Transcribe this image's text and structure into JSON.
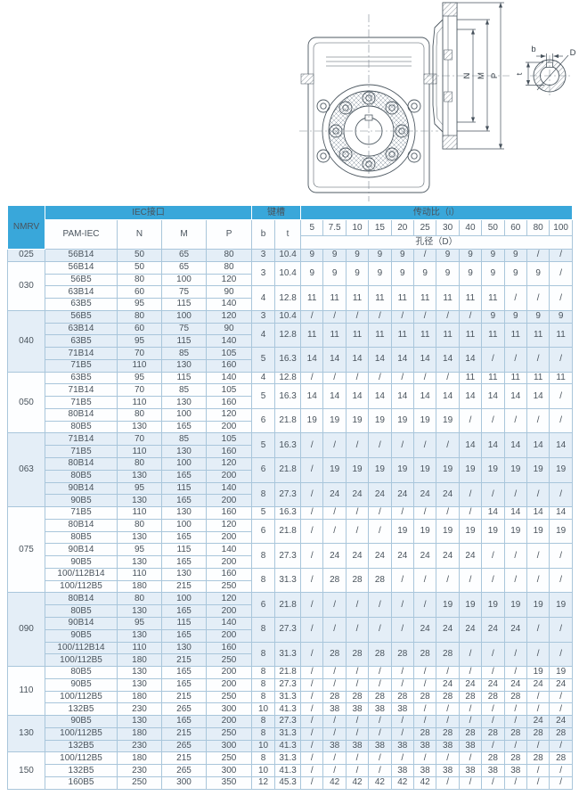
{
  "drawing": {
    "labels": {
      "dim_n": "N",
      "dim_m": "M",
      "dim_p": "P",
      "key_width": "b",
      "bore_dia": "D",
      "key_depth": "t"
    }
  },
  "table": {
    "colors": {
      "header_bg": "#39a7da",
      "header_text": "#ffffff",
      "row_tint": "#e4eef7",
      "row_plain": "#fdfeff",
      "border": "#a9c6db"
    },
    "header": {
      "nmrv": "NMRV",
      "iec_group": "IEC接口",
      "pam": "PAM-IEC",
      "n": "N",
      "m": "M",
      "p": "P",
      "key_group": "键槽",
      "b": "b",
      "t": "t",
      "ratio_group": "传动比（i）",
      "ratios": [
        "5",
        "7.5",
        "10",
        "15",
        "20",
        "25",
        "30",
        "40",
        "50",
        "60",
        "80",
        "100"
      ],
      "bore": "孔径（D）"
    },
    "groups": [
      {
        "nmrv": "025",
        "tint": true,
        "blocks": [
          {
            "b": "3",
            "t": "10.4",
            "rows": [
              {
                "pam": "56B14",
                "n": "50",
                "m": "65",
                "p": "80"
              }
            ],
            "d": [
              "9",
              "9",
              "9",
              "9",
              "9",
              "/",
              "9",
              "9",
              "9",
              "9",
              "/",
              "/"
            ]
          }
        ]
      },
      {
        "nmrv": "030",
        "tint": false,
        "blocks": [
          {
            "b": "3",
            "t": "10.4",
            "rows": [
              {
                "pam": "56B14",
                "n": "50",
                "m": "65",
                "p": "80"
              },
              {
                "pam": "56B5",
                "n": "80",
                "m": "100",
                "p": "120"
              }
            ],
            "d": [
              "9",
              "9",
              "9",
              "9",
              "9",
              "9",
              "9",
              "9",
              "9",
              "9",
              "9",
              "/"
            ]
          },
          {
            "b": "4",
            "t": "12.8",
            "rows": [
              {
                "pam": "63B14",
                "n": "60",
                "m": "75",
                "p": "90"
              },
              {
                "pam": "63B5",
                "n": "95",
                "m": "115",
                "p": "140"
              }
            ],
            "d": [
              "11",
              "11",
              "11",
              "11",
              "11",
              "11",
              "11",
              "11",
              "11",
              "/",
              "/",
              "/"
            ]
          }
        ]
      },
      {
        "nmrv": "040",
        "tint": true,
        "blocks": [
          {
            "b": "3",
            "t": "10.4",
            "rows": [
              {
                "pam": "56B5",
                "n": "80",
                "m": "100",
                "p": "120"
              }
            ],
            "d": [
              "/",
              "/",
              "/",
              "/",
              "/",
              "/",
              "/",
              "/",
              "9",
              "9",
              "9",
              "9"
            ]
          },
          {
            "b": "4",
            "t": "12.8",
            "rows": [
              {
                "pam": "63B14",
                "n": "60",
                "m": "75",
                "p": "90"
              },
              {
                "pam": "63B5",
                "n": "95",
                "m": "115",
                "p": "140"
              }
            ],
            "d": [
              "11",
              "11",
              "11",
              "11",
              "11",
              "11",
              "11",
              "11",
              "11",
              "11",
              "11",
              "11"
            ]
          },
          {
            "b": "5",
            "t": "16.3",
            "rows": [
              {
                "pam": "71B14",
                "n": "70",
                "m": "85",
                "p": "105"
              },
              {
                "pam": "71B5",
                "n": "110",
                "m": "130",
                "p": "160"
              }
            ],
            "d": [
              "14",
              "14",
              "14",
              "14",
              "14",
              "14",
              "14",
              "14",
              "/",
              "/",
              "/",
              "/"
            ]
          }
        ]
      },
      {
        "nmrv": "050",
        "tint": false,
        "blocks": [
          {
            "b": "4",
            "t": "12.8",
            "rows": [
              {
                "pam": "63B5",
                "n": "95",
                "m": "115",
                "p": "140"
              }
            ],
            "d": [
              "/",
              "/",
              "/",
              "/",
              "/",
              "/",
              "/",
              "11",
              "11",
              "11",
              "11",
              "11"
            ]
          },
          {
            "b": "5",
            "t": "16.3",
            "rows": [
              {
                "pam": "71B14",
                "n": "70",
                "m": "85",
                "p": "105"
              },
              {
                "pam": "71B5",
                "n": "110",
                "m": "130",
                "p": "160"
              }
            ],
            "d": [
              "14",
              "14",
              "14",
              "14",
              "14",
              "14",
              "14",
              "14",
              "14",
              "14",
              "14",
              "/"
            ]
          },
          {
            "b": "6",
            "t": "21.8",
            "rows": [
              {
                "pam": "80B14",
                "n": "80",
                "m": "100",
                "p": "120"
              },
              {
                "pam": "80B5",
                "n": "130",
                "m": "165",
                "p": "200"
              }
            ],
            "d": [
              "19",
              "19",
              "19",
              "19",
              "19",
              "19",
              "19",
              "/",
              "/",
              "/",
              "/",
              "/"
            ]
          }
        ]
      },
      {
        "nmrv": "063",
        "tint": true,
        "blocks": [
          {
            "b": "5",
            "t": "16.3",
            "rows": [
              {
                "pam": "71B14",
                "n": "70",
                "m": "85",
                "p": "105"
              },
              {
                "pam": "71B5",
                "n": "110",
                "m": "130",
                "p": "160"
              }
            ],
            "d": [
              "/",
              "/",
              "/",
              "/",
              "/",
              "/",
              "/",
              "14",
              "14",
              "14",
              "14",
              "14"
            ]
          },
          {
            "b": "6",
            "t": "21.8",
            "rows": [
              {
                "pam": "80B14",
                "n": "80",
                "m": "100",
                "p": "120"
              },
              {
                "pam": "80B5",
                "n": "130",
                "m": "165",
                "p": "200"
              }
            ],
            "d": [
              "/",
              "19",
              "19",
              "19",
              "19",
              "19",
              "19",
              "19",
              "19",
              "19",
              "19",
              "19"
            ]
          },
          {
            "b": "8",
            "t": "27.3",
            "rows": [
              {
                "pam": "90B14",
                "n": "95",
                "m": "115",
                "p": "140"
              },
              {
                "pam": "90B5",
                "n": "130",
                "m": "165",
                "p": "200"
              }
            ],
            "d": [
              "/",
              "24",
              "24",
              "24",
              "24",
              "24",
              "24",
              "/",
              "/",
              "/",
              "/",
              "/"
            ]
          }
        ]
      },
      {
        "nmrv": "075",
        "tint": false,
        "blocks": [
          {
            "b": "5",
            "t": "16.3",
            "rows": [
              {
                "pam": "71B5",
                "n": "110",
                "m": "130",
                "p": "160"
              }
            ],
            "d": [
              "/",
              "/",
              "/",
              "/",
              "/",
              "/",
              "/",
              "/",
              "14",
              "14",
              "14",
              "14"
            ]
          },
          {
            "b": "6",
            "t": "21.8",
            "rows": [
              {
                "pam": "80B14",
                "n": "80",
                "m": "100",
                "p": "120"
              },
              {
                "pam": "80B5",
                "n": "130",
                "m": "165",
                "p": "200"
              }
            ],
            "d": [
              "/",
              "/",
              "/",
              "/",
              "19",
              "19",
              "19",
              "19",
              "19",
              "19",
              "19",
              "19"
            ]
          },
          {
            "b": "8",
            "t": "27.3",
            "rows": [
              {
                "pam": "90B14",
                "n": "95",
                "m": "115",
                "p": "140"
              },
              {
                "pam": "90B5",
                "n": "130",
                "m": "165",
                "p": "200"
              }
            ],
            "d": [
              "/",
              "24",
              "24",
              "24",
              "24",
              "24",
              "24",
              "24",
              "/",
              "/",
              "/",
              "/"
            ]
          },
          {
            "b": "8",
            "t": "31.3",
            "rows": [
              {
                "pam": "100/112B14",
                "n": "110",
                "m": "130",
                "p": "160"
              },
              {
                "pam": "100/112B5",
                "n": "180",
                "m": "215",
                "p": "250"
              }
            ],
            "d": [
              "/",
              "28",
              "28",
              "28",
              "/",
              "/",
              "/",
              "/",
              "/",
              "/",
              "/",
              "/"
            ]
          }
        ]
      },
      {
        "nmrv": "090",
        "tint": true,
        "blocks": [
          {
            "b": "6",
            "t": "21.8",
            "rows": [
              {
                "pam": "80B14",
                "n": "80",
                "m": "100",
                "p": "120"
              },
              {
                "pam": "80B5",
                "n": "130",
                "m": "165",
                "p": "200"
              }
            ],
            "d": [
              "/",
              "/",
              "/",
              "/",
              "/",
              "/",
              "19",
              "19",
              "19",
              "19",
              "19",
              "19"
            ]
          },
          {
            "b": "8",
            "t": "27.3",
            "rows": [
              {
                "pam": "90B14",
                "n": "95",
                "m": "115",
                "p": "140"
              },
              {
                "pam": "90B5",
                "n": "130",
                "m": "165",
                "p": "200"
              }
            ],
            "d": [
              "/",
              "/",
              "/",
              "/",
              "/",
              "24",
              "24",
              "24",
              "24",
              "24",
              "/",
              "/"
            ]
          },
          {
            "b": "8",
            "t": "31.3",
            "rows": [
              {
                "pam": "100/112B14",
                "n": "110",
                "m": "130",
                "p": "160"
              },
              {
                "pam": "100/112B5",
                "n": "180",
                "m": "215",
                "p": "250"
              }
            ],
            "d": [
              "/",
              "28",
              "28",
              "28",
              "28",
              "28",
              "28",
              "/",
              "/",
              "/",
              "/",
              "/"
            ]
          }
        ]
      },
      {
        "nmrv": "110",
        "tint": false,
        "blocks": [
          {
            "b": "8",
            "t": "21.8",
            "rows": [
              {
                "pam": "80B5",
                "n": "130",
                "m": "165",
                "p": "200"
              }
            ],
            "d": [
              "/",
              "/",
              "/",
              "/",
              "/",
              "/",
              "/",
              "/",
              "/",
              "/",
              "19",
              "19"
            ]
          },
          {
            "b": "8",
            "t": "27.3",
            "rows": [
              {
                "pam": "90B5",
                "n": "130",
                "m": "165",
                "p": "200"
              }
            ],
            "d": [
              "/",
              "/",
              "/",
              "/",
              "/",
              "/",
              "24",
              "24",
              "24",
              "24",
              "24",
              "24"
            ]
          },
          {
            "b": "8",
            "t": "31.3",
            "rows": [
              {
                "pam": "100/112B5",
                "n": "180",
                "m": "215",
                "p": "250"
              }
            ],
            "d": [
              "/",
              "28",
              "28",
              "28",
              "28",
              "28",
              "28",
              "28",
              "28",
              "28",
              "/",
              "/"
            ]
          },
          {
            "b": "10",
            "t": "41.3",
            "rows": [
              {
                "pam": "132B5",
                "n": "230",
                "m": "265",
                "p": "300"
              }
            ],
            "d": [
              "/",
              "38",
              "38",
              "38",
              "38",
              "/",
              "/",
              "/",
              "/",
              "/",
              "/",
              "/"
            ]
          }
        ]
      },
      {
        "nmrv": "130",
        "tint": true,
        "blocks": [
          {
            "b": "8",
            "t": "27.3",
            "rows": [
              {
                "pam": "90B5",
                "n": "130",
                "m": "165",
                "p": "200"
              }
            ],
            "d": [
              "/",
              "/",
              "/",
              "/",
              "/",
              "/",
              "/",
              "/",
              "/",
              "/",
              "24",
              "24"
            ]
          },
          {
            "b": "8",
            "t": "31.3",
            "rows": [
              {
                "pam": "100/112B5",
                "n": "180",
                "m": "215",
                "p": "250"
              }
            ],
            "d": [
              "/",
              "/",
              "/",
              "/",
              "/",
              "28",
              "28",
              "28",
              "28",
              "28",
              "28",
              "28"
            ]
          },
          {
            "b": "10",
            "t": "41.3",
            "rows": [
              {
                "pam": "132B5",
                "n": "230",
                "m": "265",
                "p": "300"
              }
            ],
            "d": [
              "/",
              "38",
              "38",
              "38",
              "38",
              "38",
              "38",
              "38",
              "/",
              "/",
              "/",
              "/"
            ]
          }
        ]
      },
      {
        "nmrv": "150",
        "tint": false,
        "blocks": [
          {
            "b": "8",
            "t": "31.3",
            "rows": [
              {
                "pam": "100/112B5",
                "n": "180",
                "m": "215",
                "p": "250"
              }
            ],
            "d": [
              "/",
              "/",
              "/",
              "/",
              "/",
              "/",
              "/",
              "/",
              "28",
              "28",
              "28",
              "28"
            ]
          },
          {
            "b": "10",
            "t": "41.3",
            "rows": [
              {
                "pam": "132B5",
                "n": "230",
                "m": "265",
                "p": "300"
              }
            ],
            "d": [
              "/",
              "/",
              "/",
              "/",
              "38",
              "38",
              "38",
              "38",
              "38",
              "38",
              "/",
              "/"
            ]
          },
          {
            "b": "12",
            "t": "45.3",
            "rows": [
              {
                "pam": "160B5",
                "n": "250",
                "m": "300",
                "p": "350"
              }
            ],
            "d": [
              "/",
              "42",
              "42",
              "42",
              "42",
              "42",
              "/",
              "/",
              "/",
              "/",
              "/",
              "/"
            ]
          }
        ]
      }
    ]
  }
}
